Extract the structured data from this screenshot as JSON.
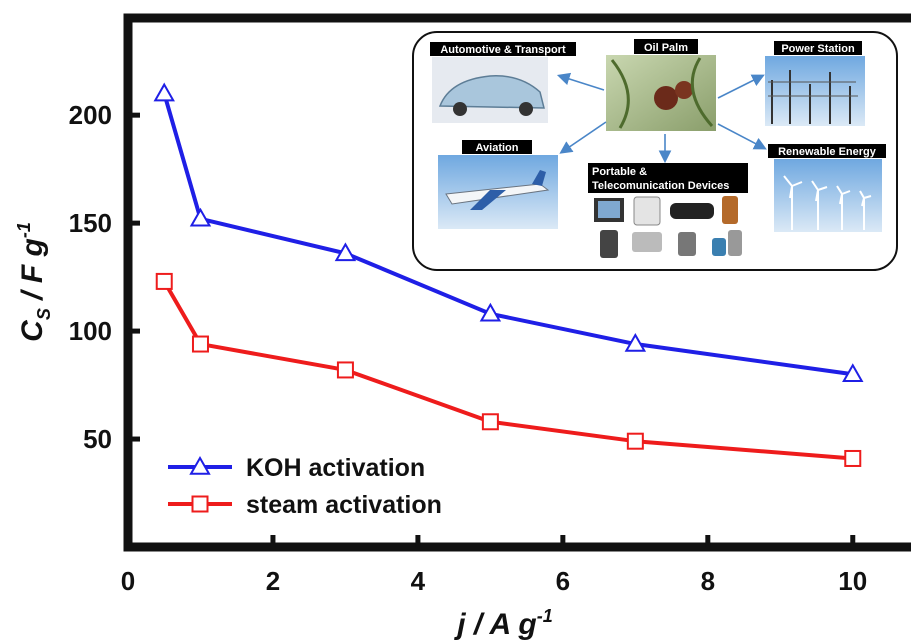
{
  "chart_data": {
    "type": "line",
    "title": "",
    "xlabel": "j / A g",
    "xlabel_sup": "-1",
    "ylabel": "C",
    "ylabel_sub": "S",
    "ylabel_rest": " / F g",
    "ylabel_sup": "-1",
    "xlim": [
      0,
      10.9
    ],
    "ylim": [
      0,
      245
    ],
    "x_ticks": [
      0,
      2,
      4,
      6,
      8,
      10
    ],
    "y_ticks": [
      50,
      100,
      150,
      200
    ],
    "legend_position": "bottom-left",
    "series": [
      {
        "name": "KOH activation",
        "color": "#1f1fe6",
        "marker": "triangle",
        "x": [
          0.5,
          1,
          3,
          5,
          7,
          10
        ],
        "y": [
          210,
          152,
          136,
          108,
          94,
          80
        ]
      },
      {
        "name": "steam activation",
        "color": "#ee1c1c",
        "marker": "square",
        "x": [
          0.5,
          1,
          3,
          5,
          7,
          10
        ],
        "y": [
          123,
          94,
          82,
          58,
          49,
          41
        ]
      }
    ],
    "inset": {
      "labels": {
        "center": "Oil Palm",
        "automotive": "Automotive & Transport",
        "power": "Power Station",
        "aviation": "Aviation",
        "portable_line1": "Portable &",
        "portable_line2": "Telecomunication Devices",
        "renewable": "Renewable Energy"
      }
    }
  }
}
